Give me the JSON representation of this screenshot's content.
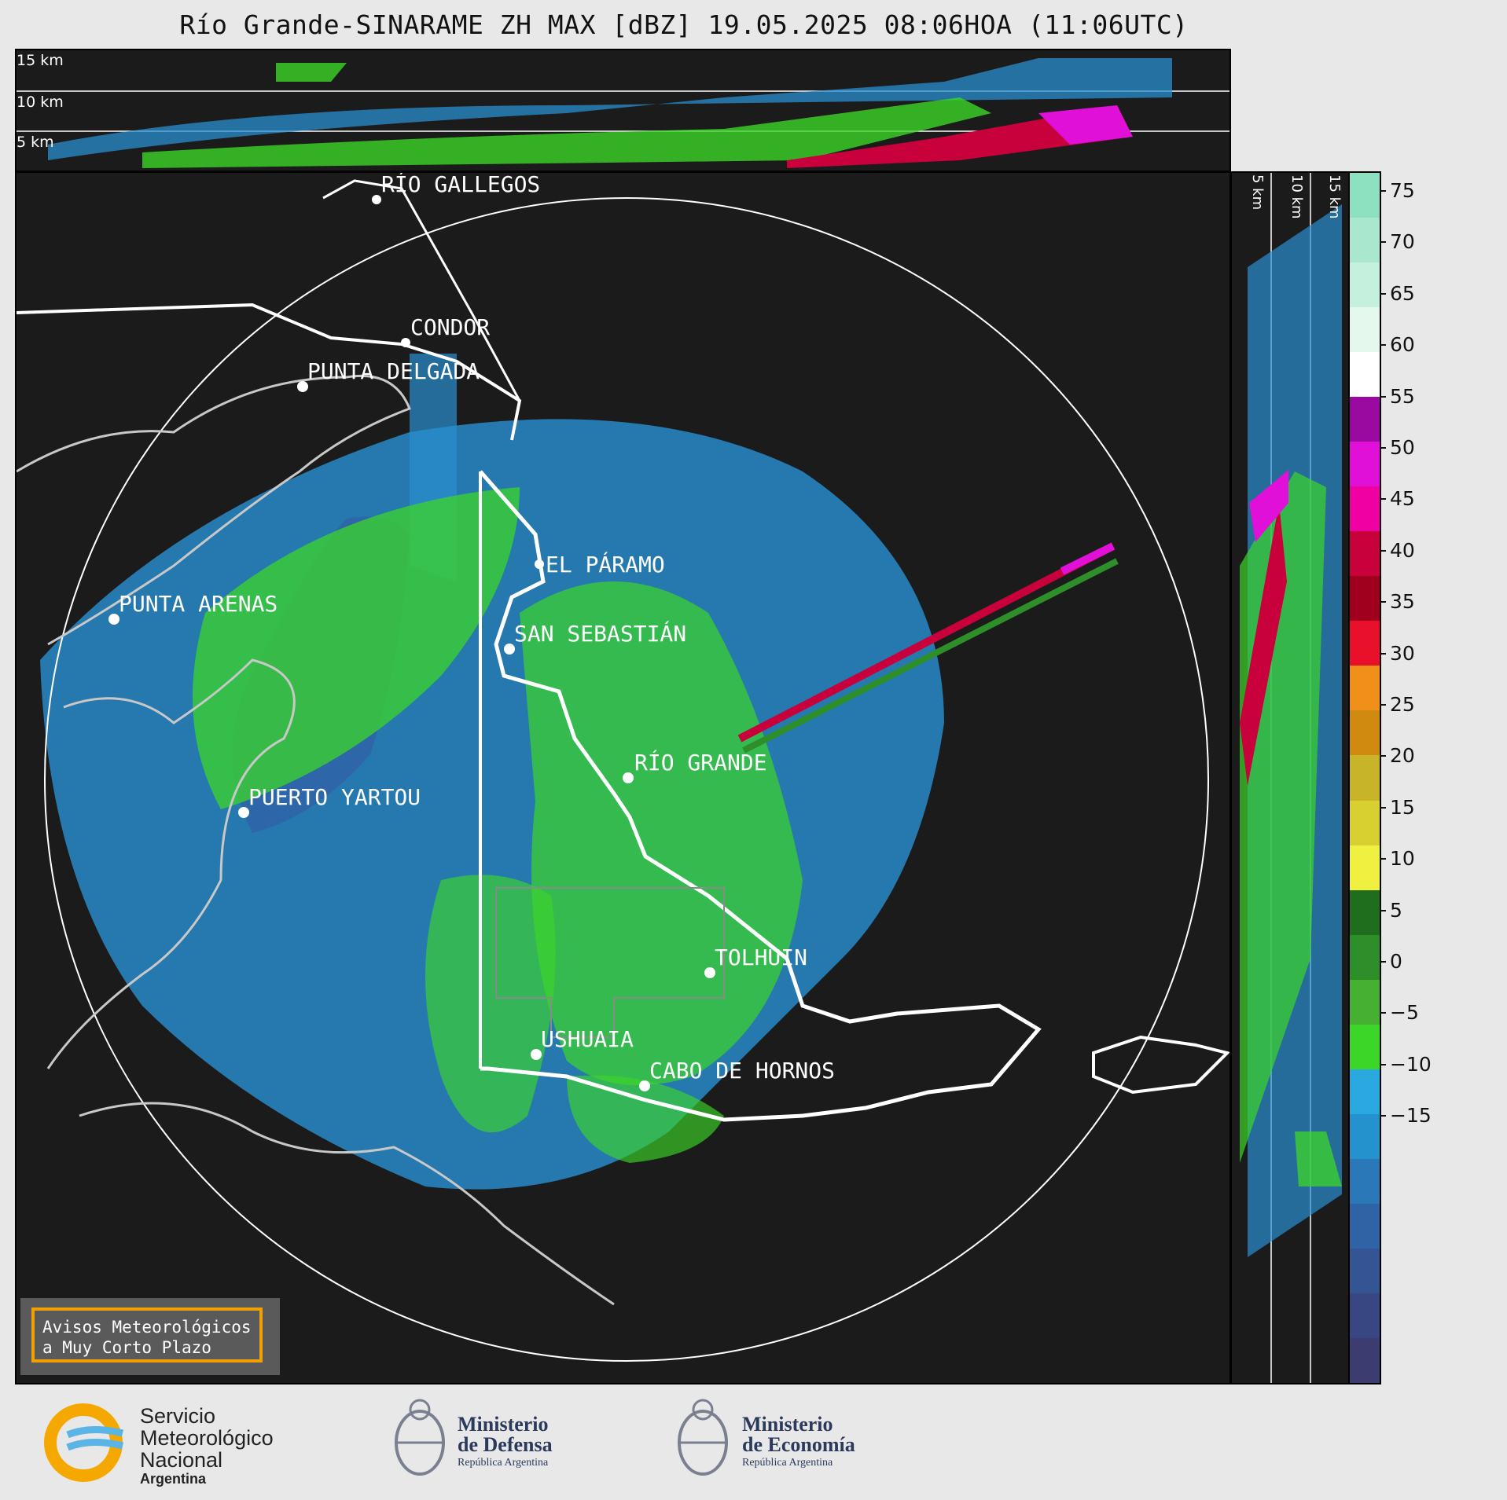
{
  "title": "Río Grande-SINARAME ZH MAX [dBZ] 19.05.2025 08:06HOA (11:06UTC)",
  "top_panel": {
    "altitude_labels": [
      "15 km",
      "10 km",
      "5 km"
    ]
  },
  "side_panel": {
    "altitude_labels": [
      "5 km",
      "10 km",
      "15 km"
    ]
  },
  "colorbar": {
    "unit": "dBZ",
    "ticks": [
      "75",
      "70",
      "65",
      "60",
      "55",
      "50",
      "45",
      "40",
      "35",
      "30",
      "25",
      "20",
      "15",
      "10",
      "5",
      "0",
      "−5",
      "−10",
      "−15"
    ],
    "colors": [
      "#8de0c0",
      "#a9e8cf",
      "#c6f0de",
      "#e4f8ee",
      "#ffffff",
      "#9a0aa0",
      "#e010d8",
      "#f000a0",
      "#c8003c",
      "#a0001e",
      "#e8102a",
      "#f0901a",
      "#d08a10",
      "#c8b428",
      "#d8d030",
      "#f0f040",
      "#1e6e1e",
      "#2e8e2a",
      "#46b032",
      "#3cd628",
      "#2aa8e0",
      "#2492cc",
      "#2a78b8",
      "#2e64a6",
      "#345494",
      "#384682",
      "#3c3c70"
    ]
  },
  "cities": [
    {
      "name": "RÍO GALLEGOS"
    },
    {
      "name": "CONDOR"
    },
    {
      "name": "PUNTA DELGADA"
    },
    {
      "name": "EL PÁRAMO"
    },
    {
      "name": "PUNTA ARENAS"
    },
    {
      "name": "SAN SEBASTIÁN"
    },
    {
      "name": "RÍO GRANDE"
    },
    {
      "name": "PUERTO YARTOU"
    },
    {
      "name": "TOLHUIN"
    },
    {
      "name": "USHUAIA"
    },
    {
      "name": "CABO DE HORNOS"
    }
  ],
  "warning_box": {
    "line1": "Avisos Meteorológicos",
    "line2": "a Muy Corto Plazo"
  },
  "footer": {
    "smn": {
      "line1": "Servicio",
      "line2": "Meteorológico",
      "line3": "Nacional",
      "line4": "Argentina"
    },
    "defensa": {
      "line1": "Ministerio",
      "line2": "de Defensa",
      "line3": "República Argentina"
    },
    "economia": {
      "line1": "Ministerio",
      "line2": "de Economía",
      "line3": "República Argentina"
    }
  },
  "colors": {
    "background": "#1b1b1b",
    "blue_echo": "#2a8fd0",
    "green_echo": "#3cd628",
    "ring": "#ffffff"
  }
}
